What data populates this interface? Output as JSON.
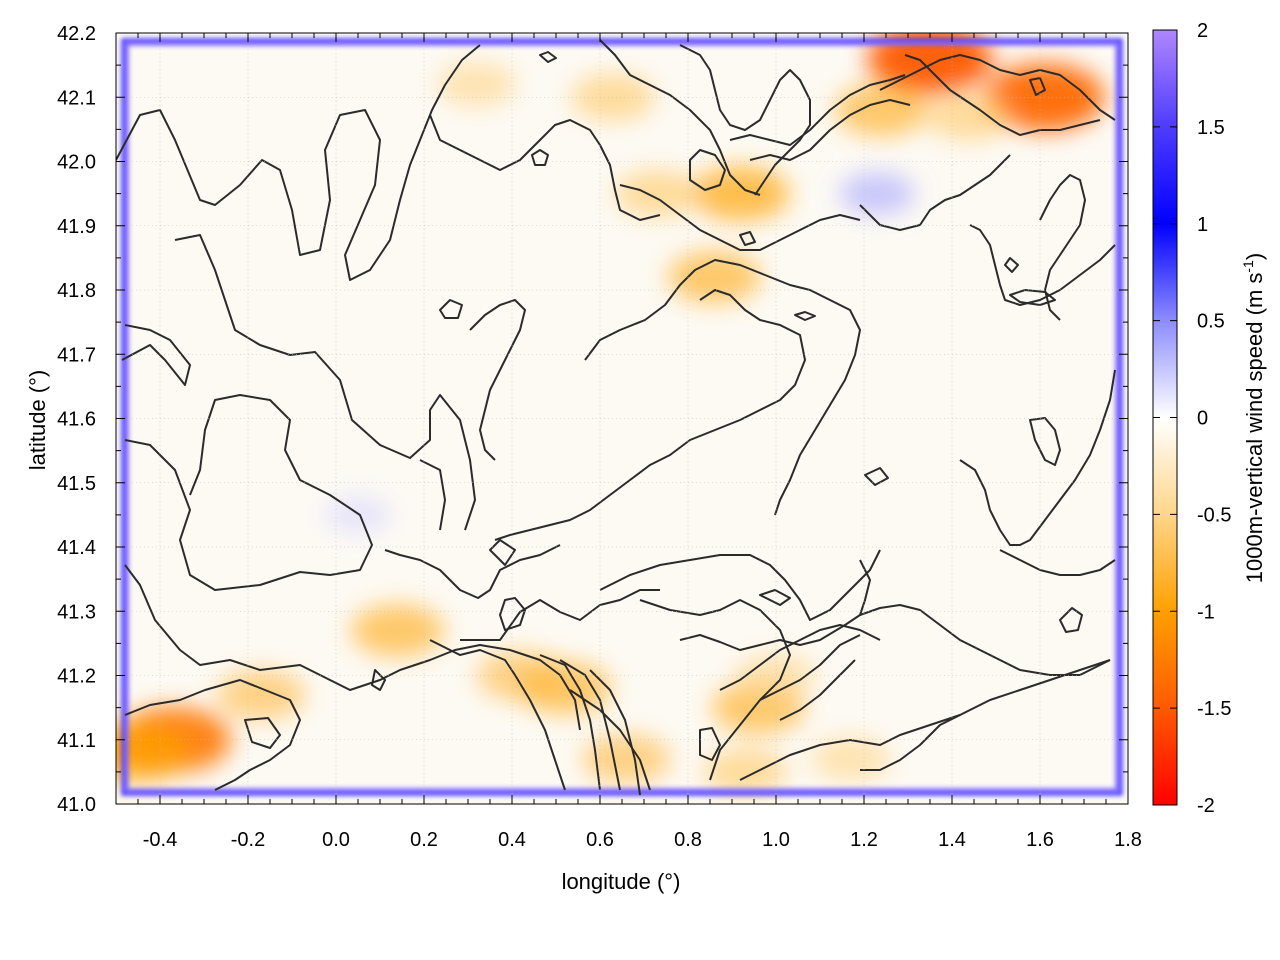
{
  "chart_data": {
    "type": "heatmap",
    "title": "",
    "xlabel": "longitude (°)",
    "ylabel": "latitude (°)",
    "xlim": [
      -0.5,
      1.8
    ],
    "ylim": [
      41.0,
      42.2
    ],
    "xticks": [
      -0.4,
      -0.2,
      0.0,
      0.2,
      0.4,
      0.6,
      0.8,
      1.0,
      1.2,
      1.4,
      1.6,
      1.8
    ],
    "xtick_labels": [
      "-0.4",
      "-0.2",
      "0.0",
      "0.2",
      "0.4",
      "0.6",
      "0.8",
      "1.0",
      "1.2",
      "1.4",
      "1.6",
      "1.8"
    ],
    "yticks": [
      41.0,
      41.1,
      41.2,
      41.3,
      41.4,
      41.5,
      41.6,
      41.7,
      41.8,
      41.9,
      42.0,
      42.1,
      42.2
    ],
    "ytick_labels": [
      "41.0",
      "41.1",
      "41.2",
      "41.3",
      "41.4",
      "41.5",
      "41.6",
      "41.7",
      "41.8",
      "41.9",
      "42.0",
      "42.1",
      "42.2"
    ],
    "grid": true,
    "colorbar": {
      "label": "1000m-vertical wind speed (m s",
      "label_sup": "-1",
      "label_tail": ")",
      "range": [
        -2,
        2
      ],
      "ticks": [
        2,
        1.5,
        1,
        0.5,
        0,
        -0.5,
        -1,
        -1.5,
        -2
      ],
      "tick_labels": [
        "2",
        "1.5",
        "1",
        "0.5",
        "0",
        "-0.5",
        "-1",
        "-1.5",
        "-2"
      ],
      "colors": [
        {
          "v": -2,
          "c": "#ff0000"
        },
        {
          "v": -1.5,
          "c": "#ff5a00"
        },
        {
          "v": -1,
          "c": "#ffa000"
        },
        {
          "v": -0.5,
          "c": "#ffd68a"
        },
        {
          "v": 0,
          "c": "#ffffff"
        },
        {
          "v": 0.5,
          "c": "#8c8cff"
        },
        {
          "v": 1,
          "c": "#0000ff"
        },
        {
          "v": 1.5,
          "c": "#4e3cff"
        },
        {
          "v": 2,
          "c": "#b086ff"
        }
      ]
    },
    "hotspots": [
      {
        "lon": 1.35,
        "lat": 42.16,
        "value": -1.5
      },
      {
        "lon": 1.61,
        "lat": 42.1,
        "value": -1.4
      },
      {
        "lon": 1.24,
        "lat": 42.08,
        "value": -0.8
      },
      {
        "lon": 1.44,
        "lat": 42.07,
        "value": -0.6
      },
      {
        "lon": 0.92,
        "lat": 41.95,
        "value": -0.9
      },
      {
        "lon": 0.86,
        "lat": 41.82,
        "value": -0.8
      },
      {
        "lon": 0.73,
        "lat": 41.95,
        "value": -0.6
      },
      {
        "lon": 0.63,
        "lat": 42.1,
        "value": -0.6
      },
      {
        "lon": 0.32,
        "lat": 42.12,
        "value": -0.5
      },
      {
        "lon": -0.37,
        "lat": 41.1,
        "value": -1.3
      },
      {
        "lon": -0.45,
        "lat": 41.08,
        "value": -1.0
      },
      {
        "lon": -0.17,
        "lat": 41.17,
        "value": -0.7
      },
      {
        "lon": 0.14,
        "lat": 41.27,
        "value": -0.8
      },
      {
        "lon": 0.42,
        "lat": 41.2,
        "value": -0.7
      },
      {
        "lon": 0.52,
        "lat": 41.18,
        "value": -0.8
      },
      {
        "lon": 0.66,
        "lat": 41.07,
        "value": -0.7
      },
      {
        "lon": 0.96,
        "lat": 41.15,
        "value": -0.8
      },
      {
        "lon": 0.93,
        "lat": 41.05,
        "value": -0.6
      },
      {
        "lon": 1.17,
        "lat": 41.07,
        "value": -0.5
      },
      {
        "lon": 1.0,
        "lat": 41.2,
        "value": -0.5
      },
      {
        "lon": 1.23,
        "lat": 41.95,
        "value": 0.4
      },
      {
        "lon": 0.05,
        "lat": 41.45,
        "value": 0.2
      }
    ]
  }
}
